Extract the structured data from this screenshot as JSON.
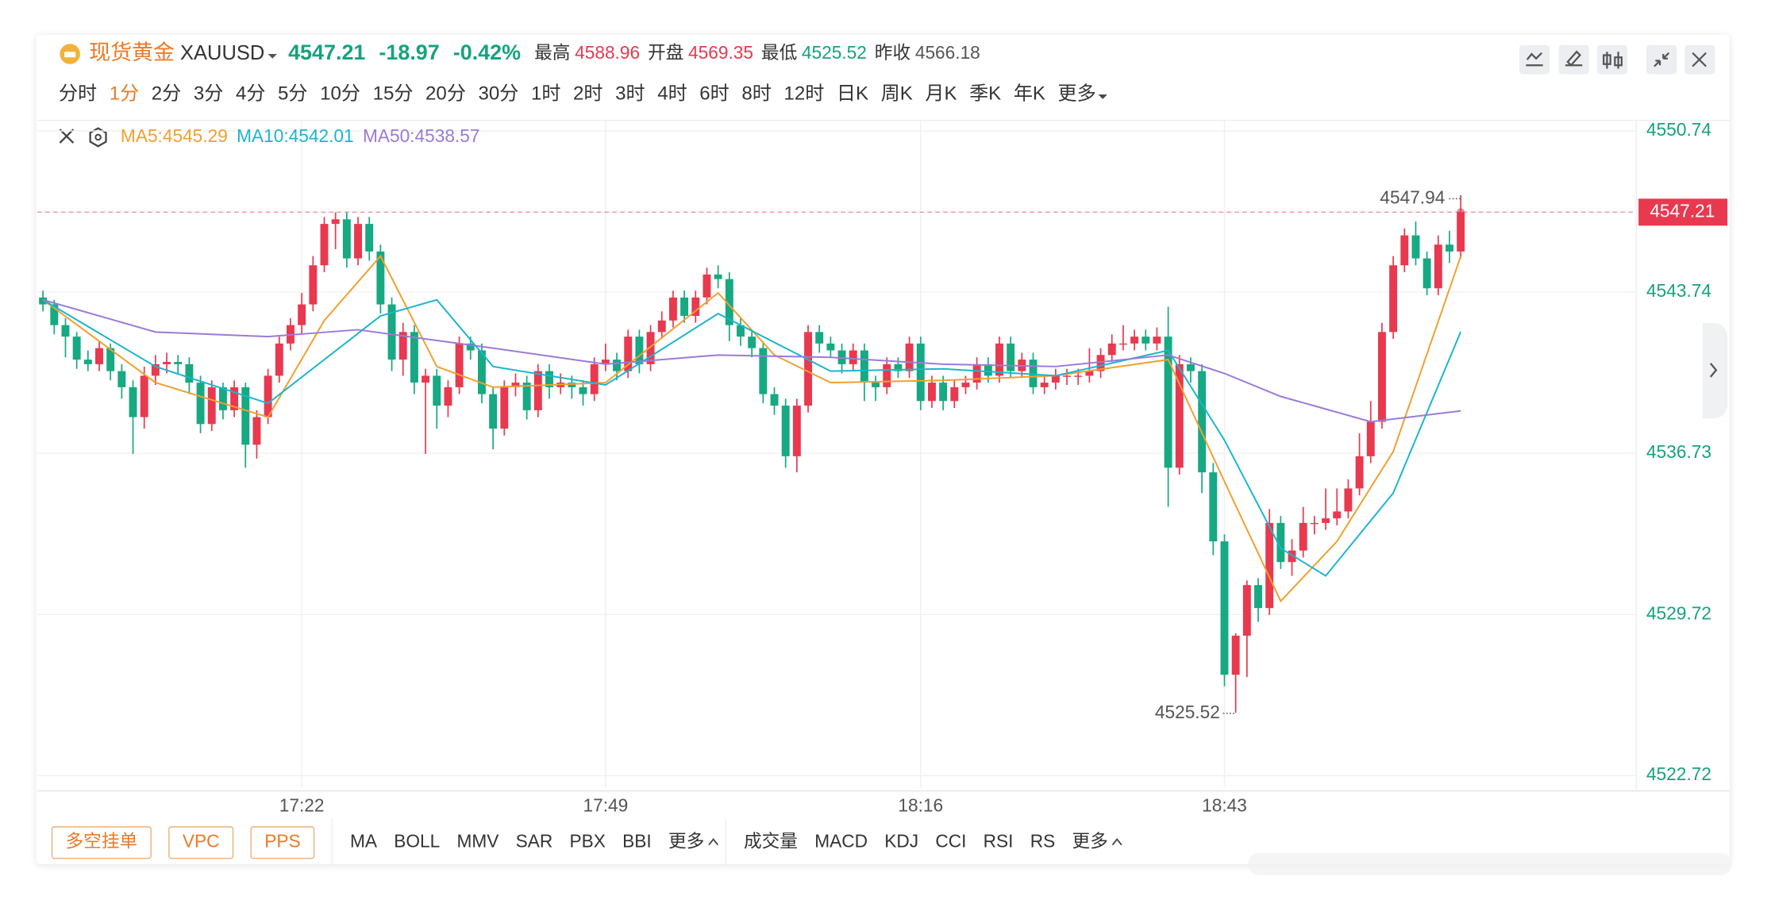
{
  "header": {
    "name": "现货黄金",
    "code": "XAUUSD",
    "price": "4547.21",
    "change": "-18.97",
    "change_pct": "-0.42%",
    "price_color": "#14a37f",
    "stats": [
      {
        "label": "最高",
        "value": "4588.96",
        "color": "#e8394f"
      },
      {
        "label": "开盘",
        "value": "4569.35",
        "color": "#e8394f"
      },
      {
        "label": "最低",
        "value": "4525.52",
        "color": "#14a37f"
      },
      {
        "label": "昨收",
        "value": "4566.18",
        "color": "#555555"
      }
    ]
  },
  "periods": [
    "分时",
    "1分",
    "2分",
    "3分",
    "4分",
    "5分",
    "10分",
    "15分",
    "20分",
    "30分",
    "1时",
    "2时",
    "3时",
    "4时",
    "6时",
    "8时",
    "12时",
    "日K",
    "周K",
    "月K",
    "季K",
    "年K",
    "更多"
  ],
  "active_period": 1,
  "footer": {
    "tools": [
      "多空挂单",
      "VPC",
      "PPS"
    ],
    "main_indicators": [
      "MA",
      "BOLL",
      "MMV",
      "SAR",
      "PBX",
      "BBI",
      "更多"
    ],
    "sub_indicators": [
      "成交量",
      "MACD",
      "KDJ",
      "CCI",
      "RSI",
      "RS",
      "更多"
    ]
  },
  "chart_data": {
    "type": "candlestick",
    "up_color": "#e8394f",
    "down_color": "#16a982",
    "last_price": 4547.21,
    "ylim": [
      4522.2,
      4551.2
    ],
    "yticks": [
      4522.72,
      4529.72,
      4536.73,
      4543.74,
      4550.74
    ],
    "xticks": [
      {
        "value": 23,
        "label": "17:22"
      },
      {
        "value": 50,
        "label": "17:49"
      },
      {
        "value": 78,
        "label": "18:16"
      },
      {
        "value": 105,
        "label": "18:43"
      }
    ],
    "candles": [
      [
        4543.5,
        4543.8,
        4542.9,
        4543.2
      ],
      [
        4543.2,
        4543.4,
        4541.9,
        4542.3
      ],
      [
        4542.3,
        4542.6,
        4540.9,
        4541.8
      ],
      [
        4541.8,
        4542.0,
        4540.4,
        4540.8
      ],
      [
        4540.8,
        4541.2,
        4540.3,
        4540.6
      ],
      [
        4540.6,
        4541.6,
        4540.3,
        4541.3
      ],
      [
        4541.3,
        4541.5,
        4539.9,
        4540.3
      ],
      [
        4540.3,
        4540.6,
        4539.1,
        4539.6
      ],
      [
        4539.6,
        4539.9,
        4536.7,
        4538.3
      ],
      [
        4538.3,
        4540.5,
        4537.8,
        4540.1
      ],
      [
        4540.1,
        4541.0,
        4539.7,
        4540.6
      ],
      [
        4540.6,
        4541.1,
        4540.2,
        4540.7
      ],
      [
        4540.7,
        4541.0,
        4540.2,
        4540.6
      ],
      [
        4540.6,
        4540.9,
        4539.3,
        4539.8
      ],
      [
        4539.8,
        4540.1,
        4537.6,
        4538.0
      ],
      [
        4538.0,
        4539.9,
        4537.7,
        4539.6
      ],
      [
        4539.6,
        4539.8,
        4538.2,
        4538.6
      ],
      [
        4538.6,
        4539.9,
        4538.3,
        4539.6
      ],
      [
        4539.6,
        4539.8,
        4536.1,
        4537.1
      ],
      [
        4537.1,
        4538.6,
        4536.5,
        4538.3
      ],
      [
        4538.3,
        4540.4,
        4538.0,
        4540.1
      ],
      [
        4540.1,
        4541.8,
        4539.8,
        4541.5
      ],
      [
        4541.5,
        4542.6,
        4541.2,
        4542.3
      ],
      [
        4542.3,
        4543.7,
        4541.9,
        4543.2
      ],
      [
        4543.2,
        4545.3,
        4542.9,
        4544.9
      ],
      [
        4544.9,
        4547.0,
        4544.6,
        4546.7
      ],
      [
        4546.7,
        4547.2,
        4545.6,
        4546.9
      ],
      [
        4546.9,
        4547.2,
        4544.8,
        4545.2
      ],
      [
        4545.2,
        4547.0,
        4544.9,
        4546.7
      ],
      [
        4546.7,
        4547.0,
        4545.1,
        4545.5
      ],
      [
        4545.5,
        4545.8,
        4542.8,
        4543.2
      ],
      [
        4543.2,
        4543.5,
        4540.3,
        4540.8
      ],
      [
        4540.8,
        4542.4,
        4540.1,
        4542.0
      ],
      [
        4542.0,
        4542.3,
        4539.3,
        4539.8
      ],
      [
        4539.8,
        4540.4,
        4536.7,
        4540.1
      ],
      [
        4540.1,
        4540.4,
        4537.8,
        4538.8
      ],
      [
        4538.8,
        4539.9,
        4538.3,
        4539.6
      ],
      [
        4539.6,
        4541.8,
        4539.3,
        4541.5
      ],
      [
        4541.5,
        4541.8,
        4540.8,
        4541.2
      ],
      [
        4541.2,
        4541.5,
        4538.9,
        4539.3
      ],
      [
        4539.3,
        4539.6,
        4536.9,
        4537.8
      ],
      [
        4537.8,
        4539.9,
        4537.5,
        4539.6
      ],
      [
        4539.6,
        4540.2,
        4539.2,
        4539.8
      ],
      [
        4539.8,
        4540.1,
        4538.2,
        4538.6
      ],
      [
        4538.6,
        4540.6,
        4538.3,
        4540.3
      ],
      [
        4540.3,
        4540.6,
        4539.1,
        4539.6
      ],
      [
        4539.6,
        4540.2,
        4539.3,
        4539.8
      ],
      [
        4539.8,
        4540.1,
        4539.1,
        4539.6
      ],
      [
        4539.6,
        4539.9,
        4538.8,
        4539.3
      ],
      [
        4539.3,
        4540.9,
        4539.0,
        4540.6
      ],
      [
        4540.6,
        4541.5,
        4540.3,
        4540.8
      ],
      [
        4540.8,
        4541.1,
        4539.9,
        4540.3
      ],
      [
        4540.3,
        4542.1,
        4540.0,
        4541.8
      ],
      [
        4541.8,
        4542.1,
        4540.2,
        4540.6
      ],
      [
        4540.6,
        4542.3,
        4540.3,
        4542.0
      ],
      [
        4542.0,
        4542.9,
        4541.7,
        4542.5
      ],
      [
        4542.5,
        4543.8,
        4542.2,
        4543.5
      ],
      [
        4543.5,
        4543.8,
        4542.4,
        4542.7
      ],
      [
        4542.7,
        4543.8,
        4542.4,
        4543.5
      ],
      [
        4543.5,
        4544.8,
        4543.2,
        4544.5
      ],
      [
        4544.5,
        4544.9,
        4543.9,
        4544.3
      ],
      [
        4544.3,
        4544.6,
        4541.6,
        4542.3
      ],
      [
        4542.3,
        4542.6,
        4541.4,
        4541.8
      ],
      [
        4541.8,
        4542.1,
        4540.9,
        4541.3
      ],
      [
        4541.3,
        4541.6,
        4538.9,
        4539.3
      ],
      [
        4539.3,
        4539.6,
        4538.4,
        4538.8
      ],
      [
        4538.8,
        4539.1,
        4536.1,
        4536.6
      ],
      [
        4536.6,
        4539.1,
        4535.9,
        4538.8
      ],
      [
        4538.8,
        4542.3,
        4538.5,
        4542.0
      ],
      [
        4542.0,
        4542.3,
        4541.1,
        4541.5
      ],
      [
        4541.5,
        4541.8,
        4540.9,
        4541.2
      ],
      [
        4541.2,
        4541.5,
        4540.2,
        4540.6
      ],
      [
        4540.6,
        4541.5,
        4540.3,
        4541.2
      ],
      [
        4541.2,
        4541.5,
        4539.0,
        4539.8
      ],
      [
        4539.8,
        4540.1,
        4539.0,
        4539.6
      ],
      [
        4539.6,
        4540.9,
        4539.3,
        4540.6
      ],
      [
        4540.6,
        4540.9,
        4540.0,
        4540.3
      ],
      [
        4540.3,
        4541.8,
        4540.0,
        4541.5
      ],
      [
        4541.5,
        4541.8,
        4538.6,
        4539.0
      ],
      [
        4539.0,
        4540.1,
        4538.7,
        4539.8
      ],
      [
        4539.8,
        4540.1,
        4538.6,
        4539.0
      ],
      [
        4539.0,
        4539.9,
        4538.7,
        4539.6
      ],
      [
        4539.6,
        4540.1,
        4539.3,
        4539.8
      ],
      [
        4539.8,
        4540.9,
        4539.5,
        4540.6
      ],
      [
        4540.6,
        4540.9,
        4539.8,
        4540.1
      ],
      [
        4540.1,
        4541.8,
        4539.8,
        4541.5
      ],
      [
        4541.5,
        4541.8,
        4540.0,
        4540.3
      ],
      [
        4540.3,
        4541.1,
        4540.0,
        4540.8
      ],
      [
        4540.8,
        4541.1,
        4539.3,
        4539.6
      ],
      [
        4539.6,
        4540.1,
        4539.3,
        4539.8
      ],
      [
        4539.8,
        4540.4,
        4539.5,
        4540.1
      ],
      [
        4540.1,
        4540.4,
        4539.7,
        4540.1
      ],
      [
        4540.1,
        4540.4,
        4539.7,
        4540.1
      ],
      [
        4540.1,
        4541.3,
        4539.8,
        4540.3
      ],
      [
        4540.3,
        4541.3,
        4540.0,
        4541.0
      ],
      [
        4541.0,
        4541.9,
        4540.7,
        4541.5
      ],
      [
        4541.5,
        4542.3,
        4541.2,
        4541.5
      ],
      [
        4541.5,
        4542.1,
        4541.2,
        4541.8
      ],
      [
        4541.8,
        4542.1,
        4541.2,
        4541.5
      ],
      [
        4541.5,
        4542.2,
        4541.2,
        4541.8
      ],
      [
        4541.8,
        4543.1,
        4534.4,
        4536.1
      ],
      [
        4536.1,
        4541.0,
        4535.8,
        4540.6
      ],
      [
        4540.6,
        4540.9,
        4539.8,
        4540.3
      ],
      [
        4540.3,
        4540.6,
        4535.0,
        4535.9
      ],
      [
        4535.9,
        4536.3,
        4532.3,
        4532.9
      ],
      [
        4532.9,
        4533.2,
        4526.6,
        4527.1
      ],
      [
        4527.1,
        4528.9,
        4525.52,
        4528.8
      ],
      [
        4528.8,
        4531.2,
        4527.0,
        4531.0
      ],
      [
        4531.0,
        4531.3,
        4529.4,
        4530.0
      ],
      [
        4530.0,
        4534.3,
        4529.7,
        4533.7
      ],
      [
        4533.7,
        4534.0,
        4531.7,
        4532.0
      ],
      [
        4532.0,
        4533.0,
        4531.4,
        4532.5
      ],
      [
        4532.5,
        4534.4,
        4532.2,
        4533.7
      ],
      [
        4533.7,
        4534.0,
        4533.2,
        4533.7
      ],
      [
        4533.7,
        4535.2,
        4533.4,
        4533.9
      ],
      [
        4533.9,
        4535.2,
        4533.6,
        4534.2
      ],
      [
        4534.2,
        4535.6,
        4533.9,
        4535.2
      ],
      [
        4535.2,
        4537.6,
        4534.9,
        4536.6
      ],
      [
        4536.6,
        4539.0,
        4536.3,
        4538.1
      ],
      [
        4538.1,
        4542.4,
        4537.8,
        4542.0
      ],
      [
        4542.0,
        4545.3,
        4541.7,
        4544.9
      ],
      [
        4544.9,
        4546.5,
        4544.6,
        4546.2
      ],
      [
        4546.2,
        4546.8,
        4544.9,
        4545.2
      ],
      [
        4545.2,
        4545.5,
        4543.6,
        4543.9
      ],
      [
        4543.9,
        4546.2,
        4543.6,
        4545.8
      ],
      [
        4545.8,
        4546.4,
        4545.0,
        4545.5
      ],
      [
        4545.5,
        4547.94,
        4545.2,
        4547.21
      ]
    ],
    "series": [
      {
        "name": "MA5:4545.29",
        "color": "#f0a030",
        "x": [
          0,
          10,
          20,
          25,
          30,
          35,
          40,
          50,
          60,
          65,
          70,
          80,
          90,
          100,
          105,
          110,
          115,
          120,
          126
        ],
        "values": [
          4543.4,
          4539.8,
          4538.3,
          4542.5,
          4545.3,
          4540.5,
          4539.6,
          4539.8,
          4543.7,
          4541.0,
          4539.8,
          4539.9,
          4540.1,
          4540.8,
          4535.5,
          4530.3,
          4532.9,
          4536.8,
          4545.29
        ]
      },
      {
        "name": "MA10:4542.01",
        "color": "#1bb5d0",
        "x": [
          0,
          10,
          20,
          30,
          35,
          40,
          50,
          60,
          70,
          80,
          90,
          100,
          105,
          110,
          114,
          120,
          126
        ],
        "values": [
          4543.4,
          4540.5,
          4538.9,
          4542.7,
          4543.4,
          4540.5,
          4539.7,
          4542.8,
          4540.3,
          4540.4,
          4540.1,
          4541.2,
          4537.3,
          4532.6,
          4531.4,
          4535.0,
          4542.01
        ]
      },
      {
        "name": "MA50:4538.57",
        "color": "#9b7ad8",
        "x": [
          0,
          10,
          20,
          28,
          40,
          50,
          60,
          70,
          80,
          90,
          100,
          105,
          110,
          118,
          126
        ],
        "values": [
          4543.4,
          4542.0,
          4541.8,
          4542.1,
          4541.3,
          4540.6,
          4541.0,
          4540.9,
          4540.6,
          4540.5,
          4541.0,
          4540.2,
          4539.2,
          4538.1,
          4538.57
        ]
      }
    ]
  }
}
